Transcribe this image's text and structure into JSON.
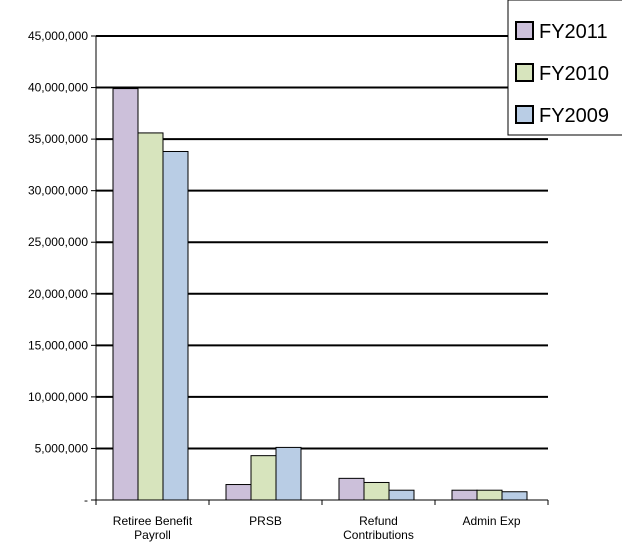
{
  "chart_data": {
    "type": "bar",
    "categories": [
      [
        "Retiree Benefit",
        "Payroll"
      ],
      [
        "PRSB"
      ],
      [
        "Refund",
        "Contributions"
      ],
      [
        "Admin Exp"
      ]
    ],
    "series": [
      {
        "name": "FY2011",
        "color": "#ccc0da",
        "values": [
          39900000,
          1500000,
          2100000,
          950000
        ]
      },
      {
        "name": "FY2010",
        "color": "#d7e4bd",
        "values": [
          35600000,
          4300000,
          1700000,
          950000
        ]
      },
      {
        "name": "FY2009",
        "color": "#b9cde5",
        "values": [
          33800000,
          5100000,
          950000,
          800000
        ]
      }
    ],
    "yticks": [
      "-",
      "5,000,000",
      "10,000,000",
      "15,000,000",
      "20,000,000",
      "25,000,000",
      "30,000,000",
      "35,000,000",
      "40,000,000",
      "45,000,000"
    ],
    "ylim": [
      0,
      45000000
    ],
    "grid": true,
    "legend_position": "top-right",
    "title": "",
    "xlabel": "",
    "ylabel": ""
  }
}
